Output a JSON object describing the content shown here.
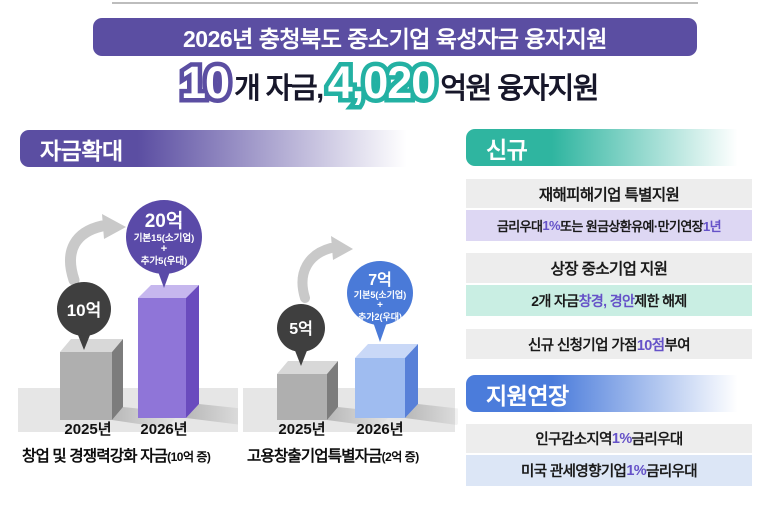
{
  "colors": {
    "brand_purple": "#5B4EA2",
    "teal": "#2FB5A0",
    "blue": "#4B7CDB",
    "accent_text": "#6552C8",
    "bar_purple_front": "#8F75D8",
    "bar_blue_front": "#9FBCF0",
    "bubble_dark": "#3F3F3F",
    "row_gray": "#EDEDED",
    "row_lavender": "#DDD7F3",
    "row_mint": "#C9EEE3",
    "row_lightblue": "#DCE6F6"
  },
  "header": {
    "banner_title": "2026년 충청북도 중소기업 육성자금 융자지원",
    "subtitle": {
      "count": "10",
      "count_label": "개 자금,",
      "amount": "4,020",
      "amount_label": "억원 융자지원"
    }
  },
  "expansion": {
    "title": "자금확대",
    "charts": [
      {
        "caption": "창업 및 경쟁력강화 자금",
        "caption_note": "(10억 증)",
        "year_prev": "2025년",
        "year_next": "2026년",
        "bubble_prev": "10억",
        "bubble_next": {
          "title": "20억",
          "line2": "기본15(소기업)",
          "line3": "+",
          "line4": "추가5(우대)"
        }
      },
      {
        "caption": "고용창출기업특별자금",
        "caption_note": "(2억 증)",
        "year_prev": "2025년",
        "year_next": "2026년",
        "bubble_prev": "5억",
        "bubble_next": {
          "title": "7억",
          "line2": "기본5(소기업)",
          "line3": "+",
          "line4": "추가2(우대)"
        }
      }
    ]
  },
  "new_section": {
    "title": "신규",
    "groups": [
      {
        "heading": "재해피해기업 특별지원",
        "detail": [
          {
            "t": "금리우대 "
          },
          {
            "t": "1%",
            "c": "#6552C8"
          },
          {
            "t": " 또는 원금상환유예·만기연장 "
          },
          {
            "t": "1년",
            "c": "#6552C8"
          }
        ]
      },
      {
        "heading": "상장 중소기업 지원",
        "detail": [
          {
            "t": "2개 자금 "
          },
          {
            "t": "창경, 경안",
            "c": "#6552C8"
          },
          {
            "t": " 제한 해제"
          }
        ]
      },
      {
        "single": [
          {
            "t": "신규 신청기업 가점 "
          },
          {
            "t": "10점",
            "c": "#6552C8"
          },
          {
            "t": " 부여"
          }
        ]
      }
    ]
  },
  "extension_section": {
    "title": "지원연장",
    "items": [
      [
        {
          "t": "인구감소지역 "
        },
        {
          "t": "1%",
          "c": "#6552C8"
        },
        {
          "t": " 금리우대"
        }
      ],
      [
        {
          "t": "미국 관세영향기업 "
        },
        {
          "t": "1%",
          "c": "#6552C8"
        },
        {
          "t": " 금리우대"
        }
      ]
    ]
  },
  "chart_data": [
    {
      "type": "bar",
      "title": "창업 및 경쟁력강화 자금(10억 증)",
      "categories": [
        "2025년",
        "2026년"
      ],
      "values": [
        10,
        20
      ],
      "unit": "억원",
      "ylim": [
        0,
        20
      ],
      "annotations": [
        "10억",
        "20억 = 기본15(소기업) + 추가5(우대)"
      ],
      "change": "+10억"
    },
    {
      "type": "bar",
      "title": "고용창출기업특별자금(2억 증)",
      "categories": [
        "2025년",
        "2026년"
      ],
      "values": [
        5,
        7
      ],
      "unit": "억원",
      "ylim": [
        0,
        7
      ],
      "annotations": [
        "5억",
        "7억 = 기본5(소기업) + 추가2(우대)"
      ],
      "change": "+2억"
    }
  ]
}
